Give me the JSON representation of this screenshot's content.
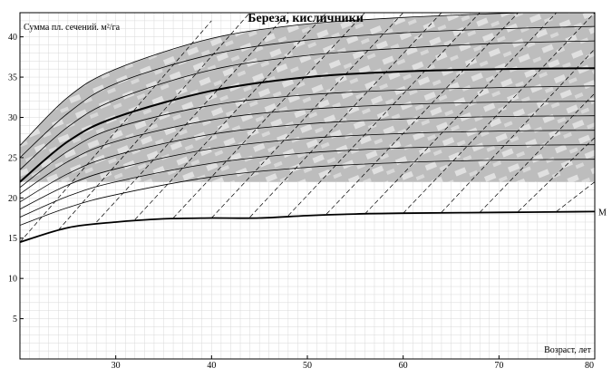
{
  "chart_data": {
    "type": "line",
    "title": "Береза, кисличники",
    "ylabel": "Сумма пл. сечений. м²/га",
    "xlabel": "Возраст, лет",
    "xlim": [
      20,
      80
    ],
    "ylim": [
      0,
      43
    ],
    "x_ticks": [
      30,
      40,
      50,
      60,
      70,
      80
    ],
    "y_ticks": [
      5,
      10,
      15,
      20,
      25,
      30,
      35,
      40
    ],
    "grid": true,
    "band_fill_color": "#bdbdbd",
    "band_texture_color": "#e6e6e6",
    "band_y_lower": 22,
    "upper_family": [
      {
        "x": [
          20,
          25,
          30,
          40,
          50,
          60,
          70,
          80
        ],
        "y": [
          26.5,
          32.5,
          36.0,
          39.8,
          41.6,
          42.4,
          42.9,
          43.2
        ]
      },
      {
        "x": [
          20,
          25,
          30,
          40,
          50,
          60,
          70,
          80
        ],
        "y": [
          25.0,
          30.5,
          34.2,
          37.8,
          39.6,
          40.5,
          41.0,
          41.3
        ]
      },
      {
        "x": [
          20,
          25,
          30,
          40,
          50,
          60,
          70,
          80
        ],
        "y": [
          23.5,
          28.8,
          32.2,
          35.9,
          37.7,
          38.6,
          39.2,
          39.5
        ]
      },
      {
        "x": [
          20,
          25,
          30,
          40,
          50,
          60,
          70,
          80
        ],
        "y": [
          22.0,
          27.0,
          30.0,
          33.3,
          35.0,
          35.7,
          36.0,
          36.1
        ]
      },
      {
        "x": [
          20,
          25,
          30,
          40,
          50,
          60,
          70,
          80
        ],
        "y": [
          21.3,
          25.8,
          28.7,
          31.5,
          32.8,
          33.4,
          33.7,
          33.9
        ]
      },
      {
        "x": [
          20,
          25,
          30,
          40,
          50,
          60,
          70,
          80
        ],
        "y": [
          20.5,
          24.5,
          27.0,
          29.7,
          31.0,
          31.6,
          31.9,
          32.0
        ]
      },
      {
        "x": [
          20,
          25,
          30,
          40,
          50,
          60,
          70,
          80
        ],
        "y": [
          19.5,
          23.0,
          25.3,
          27.9,
          29.2,
          29.8,
          30.1,
          30.2
        ]
      },
      {
        "x": [
          20,
          25,
          30,
          40,
          50,
          60,
          70,
          80
        ],
        "y": [
          18.6,
          21.6,
          23.6,
          26.1,
          27.4,
          28.0,
          28.3,
          28.4
        ]
      },
      {
        "x": [
          20,
          25,
          30,
          40,
          50,
          60,
          70,
          80
        ],
        "y": [
          17.6,
          20.2,
          22.0,
          24.3,
          25.6,
          26.2,
          26.5,
          26.6
        ]
      },
      {
        "x": [
          20,
          25,
          30,
          40,
          50,
          60,
          70,
          80
        ],
        "y": [
          16.6,
          18.8,
          20.4,
          22.6,
          23.8,
          24.4,
          24.7,
          24.8
        ]
      }
    ],
    "emphasized_curve": {
      "x": [
        20,
        25,
        30,
        40,
        50,
        60,
        70,
        80
      ],
      "y": [
        22.0,
        27.0,
        30.0,
        33.3,
        35.0,
        35.7,
        36.0,
        36.1
      ]
    },
    "m_curve": {
      "name": "М",
      "x": [
        20,
        25,
        30,
        35,
        40,
        45,
        50,
        55,
        60,
        70,
        80
      ],
      "y": [
        14.5,
        16.3,
        17.0,
        17.4,
        17.5,
        17.5,
        17.8,
        18.0,
        18.1,
        18.2,
        18.3
      ]
    },
    "dashed_slopes": [
      {
        "x": [
          20,
          40
        ],
        "y": [
          14.5,
          42.0
        ]
      },
      {
        "x": [
          24,
          44
        ],
        "y": [
          16.0,
          43.0
        ]
      },
      {
        "x": [
          28,
          48
        ],
        "y": [
          17.0,
          43.0
        ]
      },
      {
        "x": [
          32,
          52
        ],
        "y": [
          17.3,
          43.0
        ]
      },
      {
        "x": [
          36,
          56
        ],
        "y": [
          17.5,
          43.0
        ]
      },
      {
        "x": [
          40,
          60
        ],
        "y": [
          17.5,
          43.0
        ]
      },
      {
        "x": [
          44,
          64
        ],
        "y": [
          17.6,
          43.0
        ]
      },
      {
        "x": [
          48,
          68
        ],
        "y": [
          17.8,
          43.0
        ]
      },
      {
        "x": [
          52,
          72
        ],
        "y": [
          18.0,
          43.0
        ]
      },
      {
        "x": [
          56,
          76
        ],
        "y": [
          18.0,
          43.0
        ]
      },
      {
        "x": [
          60,
          80
        ],
        "y": [
          18.1,
          43.0
        ]
      },
      {
        "x": [
          64,
          80
        ],
        "y": [
          18.2,
          38.5
        ]
      },
      {
        "x": [
          68,
          80
        ],
        "y": [
          18.2,
          33.0
        ]
      },
      {
        "x": [
          72,
          80
        ],
        "y": [
          18.3,
          27.5
        ]
      },
      {
        "x": [
          76,
          80
        ],
        "y": [
          18.3,
          22.0
        ]
      }
    ]
  }
}
